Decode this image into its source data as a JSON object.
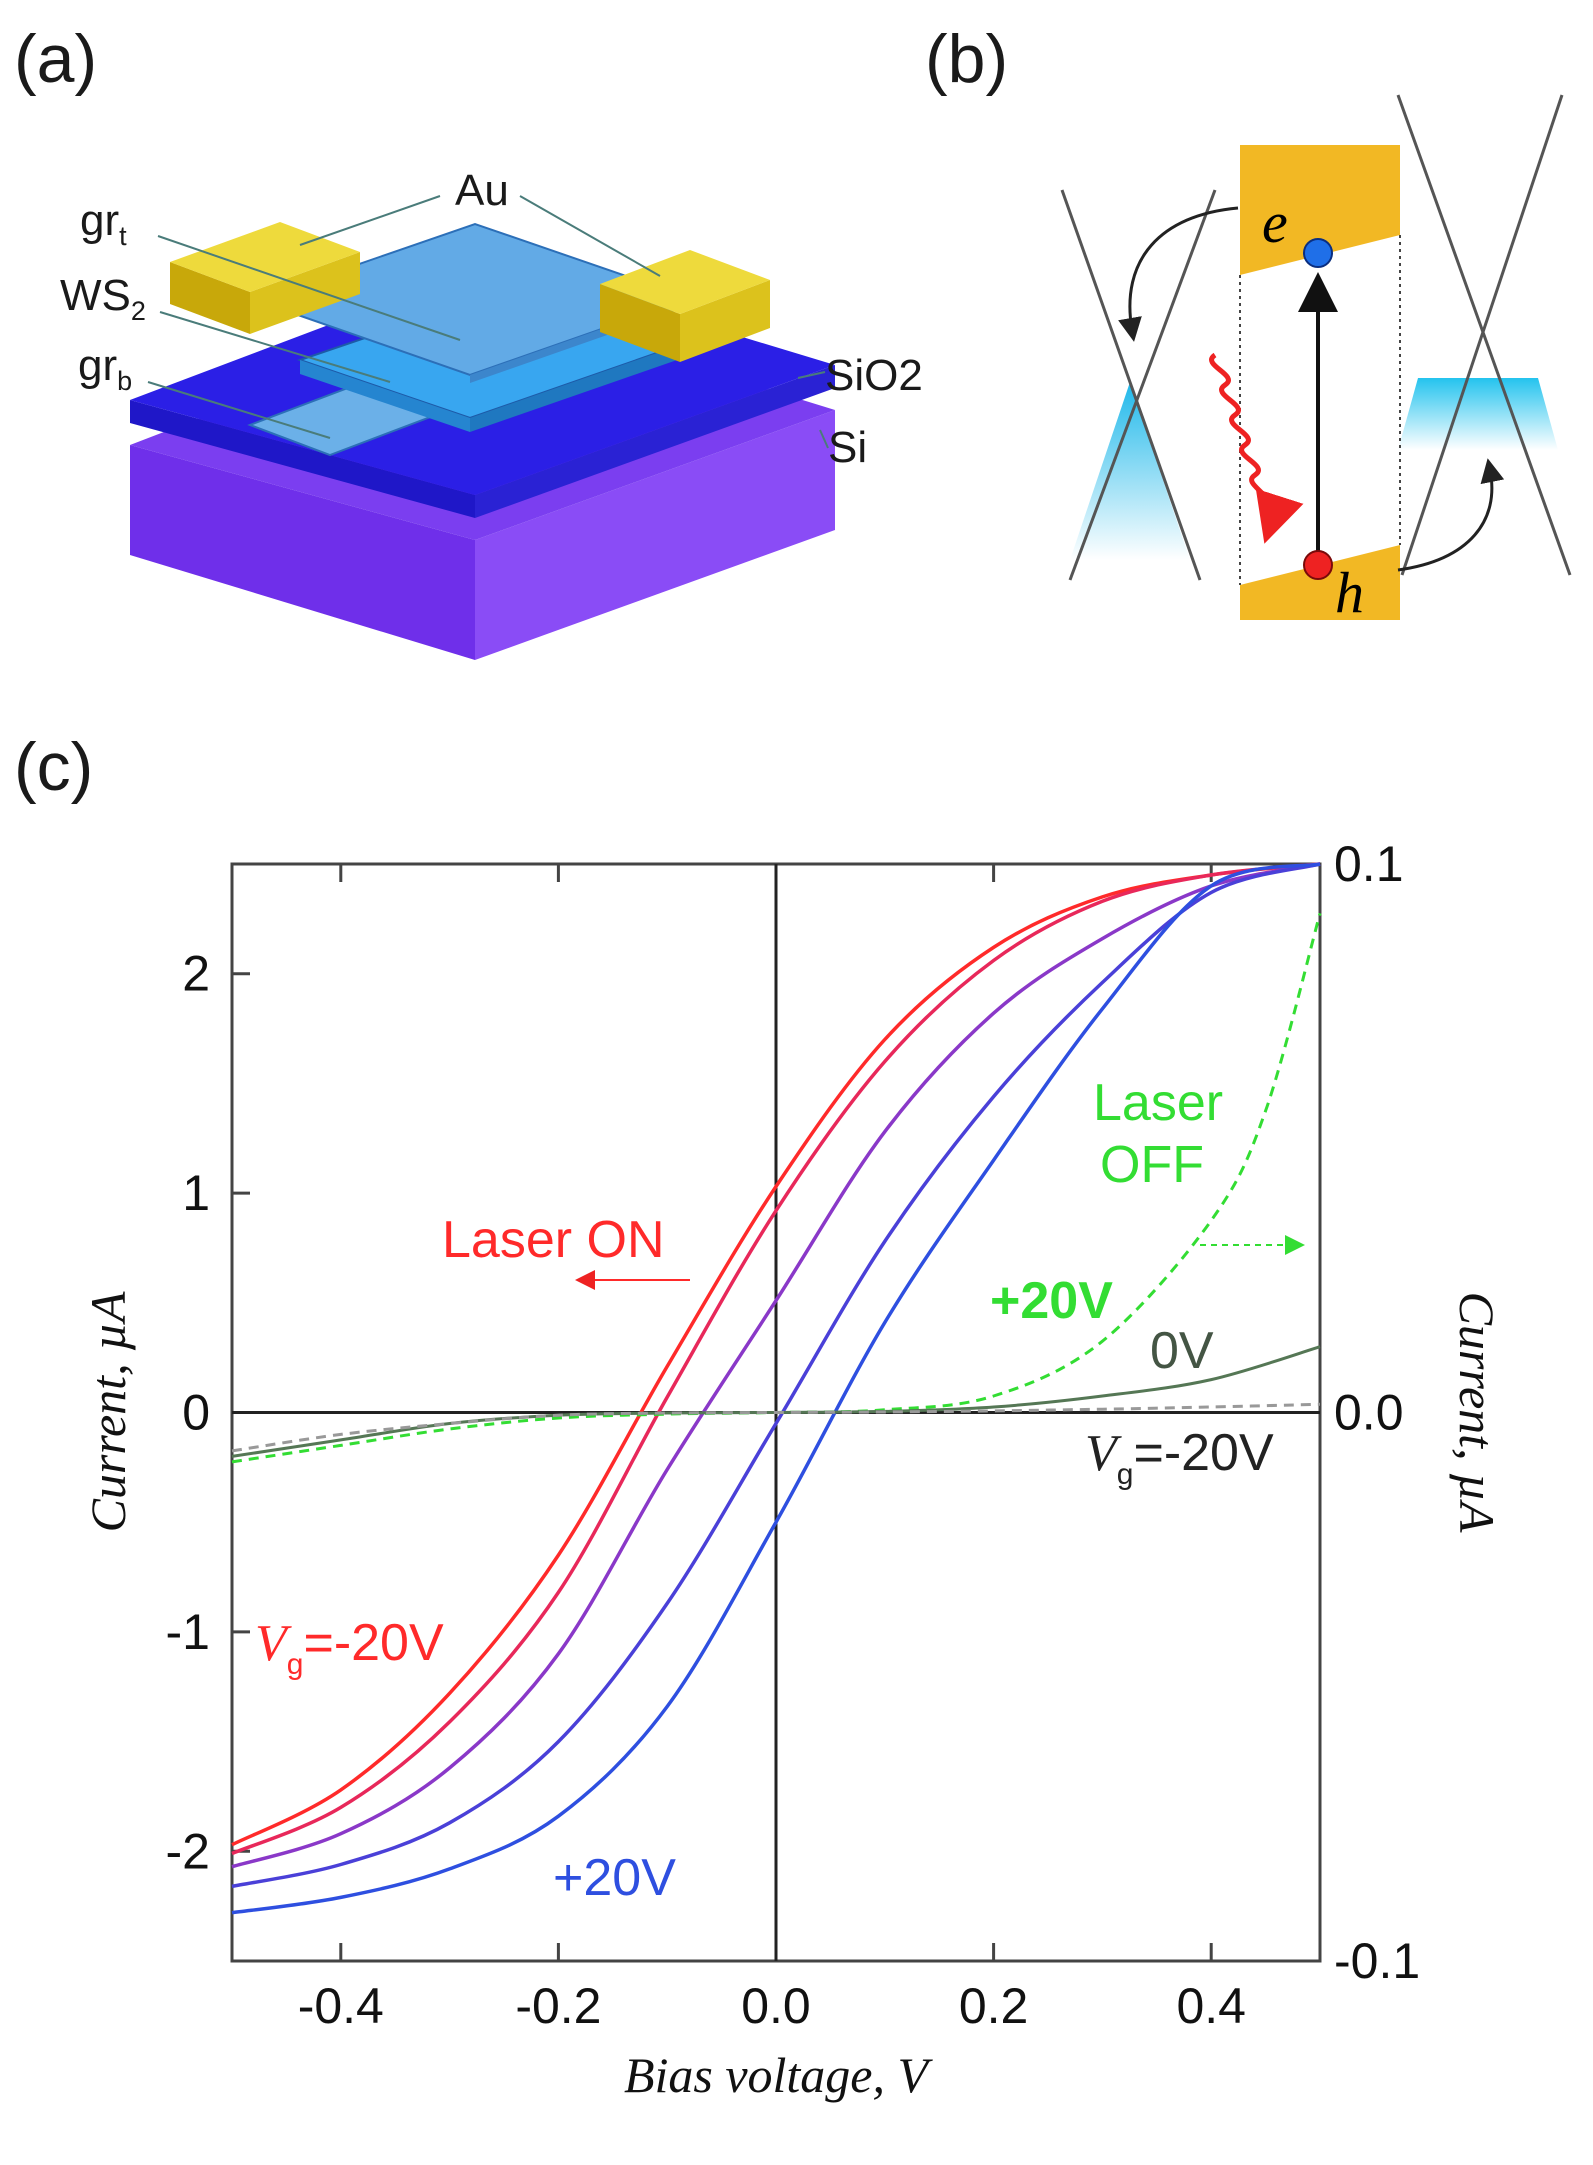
{
  "panel_a": {
    "label": "(a)",
    "layers": {
      "gr_t": {
        "base": "gr",
        "sub": "t"
      },
      "ws2": {
        "base": "WS",
        "sub": "2"
      },
      "gr_b": {
        "base": "gr",
        "sub": "b"
      },
      "au": "Au",
      "sio2": "SiO2",
      "si": "Si"
    },
    "colors": {
      "gold": "#e0c21a",
      "graphene": "#5aa8e6",
      "ws2": "#3d9ce8",
      "sio2": "#2b20e0",
      "si": "#7a3bf2"
    }
  },
  "panel_b": {
    "label": "(b)",
    "electron": "e",
    "hole": "h",
    "colors": {
      "band": "#f2b824",
      "cone_fill": "#39c6ee",
      "photon": "#ee2222"
    }
  },
  "panel_c": {
    "label": "(c)",
    "annotations": {
      "laser_on": "Laser ON",
      "laser_off_line1": "Laser",
      "laser_off_line2": "OFF",
      "off_plus20": "+20V",
      "off_zero": "0V",
      "off_vg_prefix": "V",
      "off_vg_sub": "g",
      "off_vg_value": "=-20V",
      "on_vg_prefix": "V",
      "on_vg_sub": "g",
      "on_vg_value": "=-20V",
      "on_plus20": "+20V"
    },
    "colors": {
      "vg_minus20": "#ff2a2a",
      "vg_plus20": "#2e4fe0",
      "laser_off": "#33dd33",
      "off_zero": "#557755",
      "off_minus20": "#999999"
    }
  },
  "chart_data": {
    "type": "line",
    "xlabel": "Bias voltage, V",
    "ylabel": "Current, µA",
    "y2label": "Current, µA",
    "xlim": [
      -0.5,
      0.5
    ],
    "ylim": [
      -2.5,
      2.5
    ],
    "y2lim": [
      -0.1,
      0.1
    ],
    "x_ticks": [
      "-0.4",
      "-0.2",
      "0.0",
      "0.2",
      "0.4"
    ],
    "y_ticks": [
      "-2",
      "-1",
      "0",
      "1",
      "2"
    ],
    "y2_ticks": [
      "-0.1",
      "0.0",
      "0.1"
    ],
    "grid": false,
    "series": [
      {
        "name": "Vg=-20V",
        "axis": "left",
        "laser": "on",
        "color": "#ff2a2a",
        "x": [
          -0.5,
          -0.4,
          -0.3,
          -0.2,
          -0.1,
          0.0,
          0.1,
          0.2,
          0.3,
          0.4,
          0.5
        ],
        "y": [
          -1.97,
          -1.72,
          -1.28,
          -0.65,
          0.21,
          1.03,
          1.7,
          2.12,
          2.35,
          2.45,
          2.5
        ]
      },
      {
        "axis": "left",
        "laser": "on",
        "color": "#e8285a",
        "x": [
          -0.5,
          -0.4,
          -0.3,
          -0.2,
          -0.1,
          0.0,
          0.1,
          0.2,
          0.3,
          0.4,
          0.5
        ],
        "y": [
          -2.01,
          -1.8,
          -1.41,
          -0.82,
          0.07,
          0.92,
          1.6,
          2.06,
          2.33,
          2.45,
          2.5
        ]
      },
      {
        "axis": "left",
        "laser": "on",
        "color": "#8a38c8",
        "x": [
          -0.5,
          -0.4,
          -0.3,
          -0.2,
          -0.1,
          0.0,
          0.1,
          0.2,
          0.3,
          0.4,
          0.5
        ],
        "y": [
          -2.07,
          -1.92,
          -1.62,
          -1.1,
          -0.26,
          0.51,
          1.28,
          1.82,
          2.16,
          2.4,
          2.5
        ]
      },
      {
        "axis": "left",
        "laser": "on",
        "color": "#4a40d8",
        "x": [
          -0.5,
          -0.4,
          -0.3,
          -0.2,
          -0.1,
          0.0,
          0.1,
          0.2,
          0.3,
          0.4,
          0.5
        ],
        "y": [
          -2.16,
          -2.06,
          -1.87,
          -1.5,
          -0.87,
          -0.05,
          0.78,
          1.44,
          1.96,
          2.37,
          2.5
        ]
      },
      {
        "name": "+20V",
        "axis": "left",
        "laser": "on",
        "color": "#2e4fe0",
        "x": [
          -0.5,
          -0.4,
          -0.3,
          -0.2,
          -0.1,
          0.0,
          0.1,
          0.2,
          0.3,
          0.4,
          0.5
        ],
        "y": [
          -2.28,
          -2.21,
          -2.08,
          -1.84,
          -1.34,
          -0.5,
          0.41,
          1.15,
          1.84,
          2.4,
          2.5
        ]
      },
      {
        "name": "+20V",
        "axis": "right",
        "laser": "off",
        "color": "#33dd33",
        "dashed": true,
        "x": [
          -0.5,
          -0.4,
          -0.3,
          -0.2,
          -0.1,
          0.0,
          0.1,
          0.2,
          0.3,
          0.4,
          0.45,
          0.5
        ],
        "y": [
          -0.009,
          -0.006,
          -0.003,
          -0.001,
          -0.0003,
          0.0,
          0.0005,
          0.003,
          0.013,
          0.035,
          0.055,
          0.091
        ]
      },
      {
        "name": "0V",
        "axis": "right",
        "laser": "off",
        "color": "#557755",
        "x": [
          -0.5,
          -0.4,
          -0.3,
          -0.2,
          -0.1,
          0.0,
          0.1,
          0.2,
          0.3,
          0.4,
          0.5
        ],
        "y": [
          -0.008,
          -0.005,
          -0.002,
          -0.0005,
          -0.0001,
          0.0,
          0.0002,
          0.001,
          0.003,
          0.006,
          0.012
        ]
      },
      {
        "name": "Vg=-20V",
        "axis": "right",
        "laser": "off",
        "color": "#999999",
        "dashed": true,
        "x": [
          -0.5,
          -0.4,
          -0.3,
          -0.2,
          -0.1,
          0.0,
          0.1,
          0.2,
          0.3,
          0.4,
          0.5
        ],
        "y": [
          -0.007,
          -0.004,
          -0.002,
          -0.0005,
          -0.0001,
          0.0,
          0.0001,
          0.0003,
          0.0006,
          0.001,
          0.0015
        ]
      }
    ]
  }
}
